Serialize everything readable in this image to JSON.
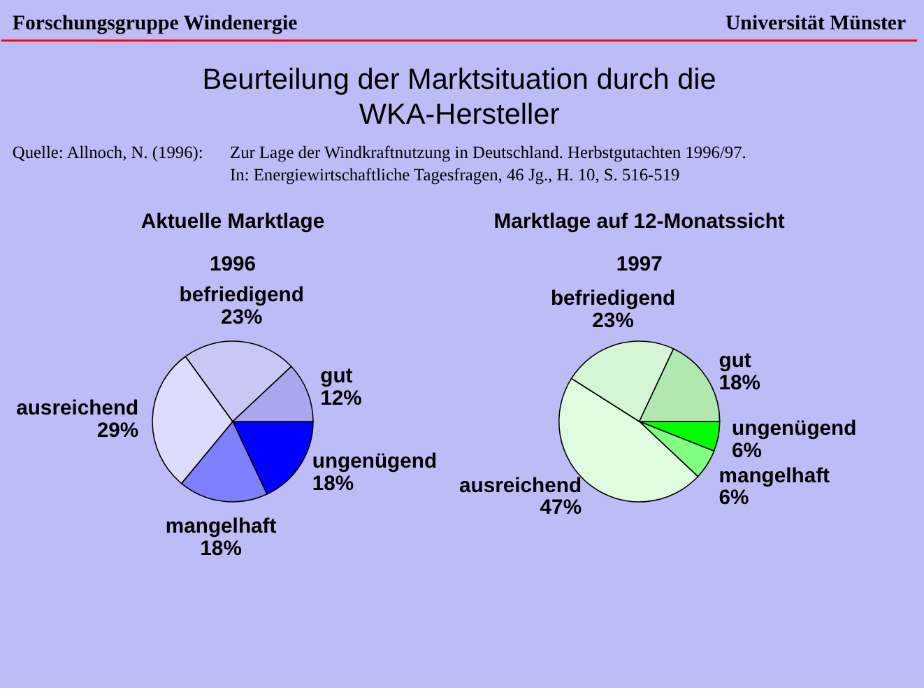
{
  "chart_data": [
    {
      "type": "other",
      "title": "Beurteilung der Marktsituation durch die WKA-Hersteller",
      "annotations": [
        "Forschungsgruppe Windenergie",
        "Universität Münster",
        "Quelle: Allnoch, N. (1996):",
        "Zur Lage der Windkraftnutzung in Deutschland. Herbstgutachten 1996/97.",
        "In: Energiewirtschaftliche Tagesfragen, 46 Jg., H. 10, S. 516-519"
      ]
    },
    {
      "type": "pie",
      "title": "Aktuelle Marktlage",
      "subtitle": "1996",
      "categories": [
        "ungenügend",
        "mangelhaft",
        "ausreichend",
        "befriedigend",
        "gut"
      ],
      "values": [
        18,
        18,
        29,
        23,
        12
      ],
      "value_labels": [
        "18%",
        "18%",
        "29%",
        "23%",
        "12%"
      ],
      "colors": [
        "#0000ff",
        "#8080ff",
        "#dcdcfc",
        "#c8c8f4",
        "#a8a8f0"
      ]
    },
    {
      "type": "pie",
      "title": "Marktlage auf 12-Monatssicht",
      "subtitle": "1997",
      "categories": [
        "ungenügend",
        "mangelhaft",
        "ausreichend",
        "befriedigend",
        "gut"
      ],
      "values": [
        6,
        6,
        47,
        23,
        18
      ],
      "value_labels": [
        "6%",
        "6%",
        "47%",
        "23%",
        "18%"
      ],
      "colors": [
        "#00ff00",
        "#80ff80",
        "#e0fce0",
        "#d4f6d4",
        "#b0e8b0"
      ]
    }
  ]
}
